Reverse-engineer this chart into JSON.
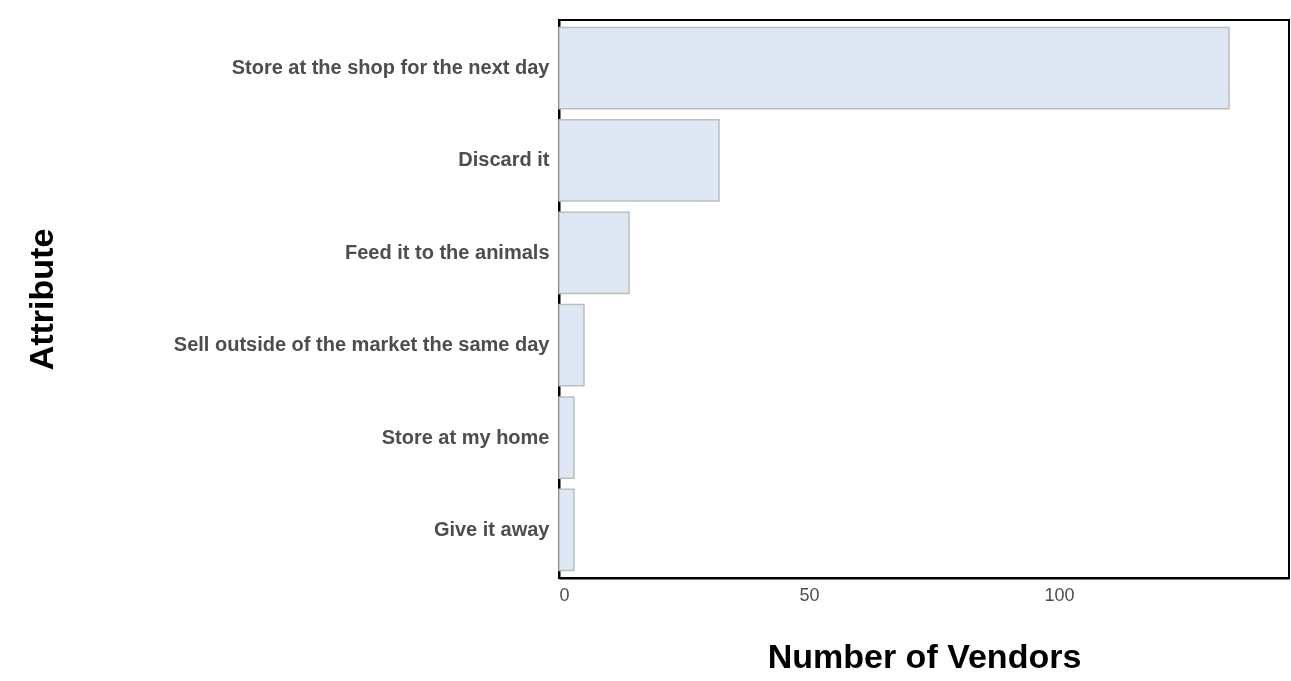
{
  "chart_data": {
    "type": "bar",
    "orientation": "horizontal",
    "xlabel": "Number of Vendors",
    "ylabel": "Attribute",
    "categories": [
      "Store at the shop for the next day",
      "Discard it",
      "Feed it to the animals",
      "Sell outside of the market the same day",
      "Store at my home",
      "Give it away"
    ],
    "values": [
      134,
      32,
      14,
      5,
      3,
      3
    ],
    "color": "#dde8f4",
    "xlim": [
      0,
      146
    ],
    "xticks": [
      0,
      50,
      100
    ],
    "grid": false
  }
}
